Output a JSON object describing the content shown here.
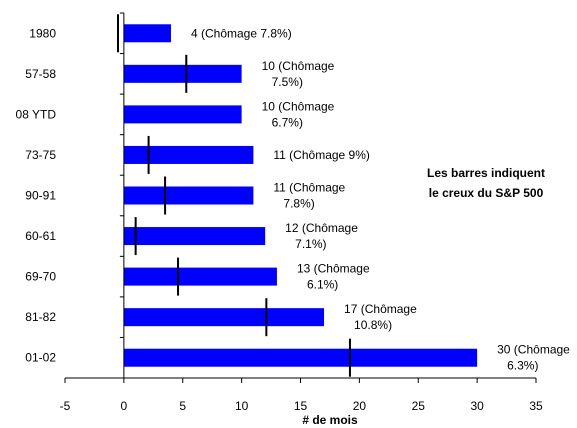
{
  "chart_data": {
    "type": "bar",
    "orientation": "horizontal",
    "categories": [
      "1980",
      "57-58",
      "08 YTD",
      "73-75",
      "90-91",
      "60-61",
      "69-70",
      "81-82",
      "01-02"
    ],
    "values": [
      4,
      10,
      10,
      11,
      11,
      12,
      13,
      17,
      30
    ],
    "bar_labels": [
      [
        "4 (Chômage 7.8%)"
      ],
      [
        "10 (Chômage",
        "7.5%)"
      ],
      [
        "10 (Chômage",
        "6.7%)"
      ],
      [
        "11 (Chômage 9%)"
      ],
      [
        "11 (Chômage",
        "7.8%)"
      ],
      [
        "12 (Chômage",
        "7.1%)"
      ],
      [
        "13 (Chômage",
        "6.1%)"
      ],
      [
        "17 (Chômage",
        "10.8%)"
      ],
      [
        "30 (Chômage",
        "6.3%)"
      ]
    ],
    "trough_markers": [
      -0.5,
      5.3,
      null,
      2.1,
      3.5,
      1.0,
      4.6,
      12.1,
      19.2
    ],
    "xlabel": "# de mois",
    "ylabel": "",
    "xlim": [
      -5,
      35
    ],
    "xticks": [
      -5,
      0,
      5,
      10,
      15,
      20,
      25,
      30,
      35
    ],
    "grid": false,
    "legend": null,
    "annotation": [
      "Les barres indiquent",
      "le creux du S&P 500"
    ],
    "colors": {
      "bar": "#0000ff",
      "marker": "#000000",
      "axis": "#000000"
    }
  }
}
